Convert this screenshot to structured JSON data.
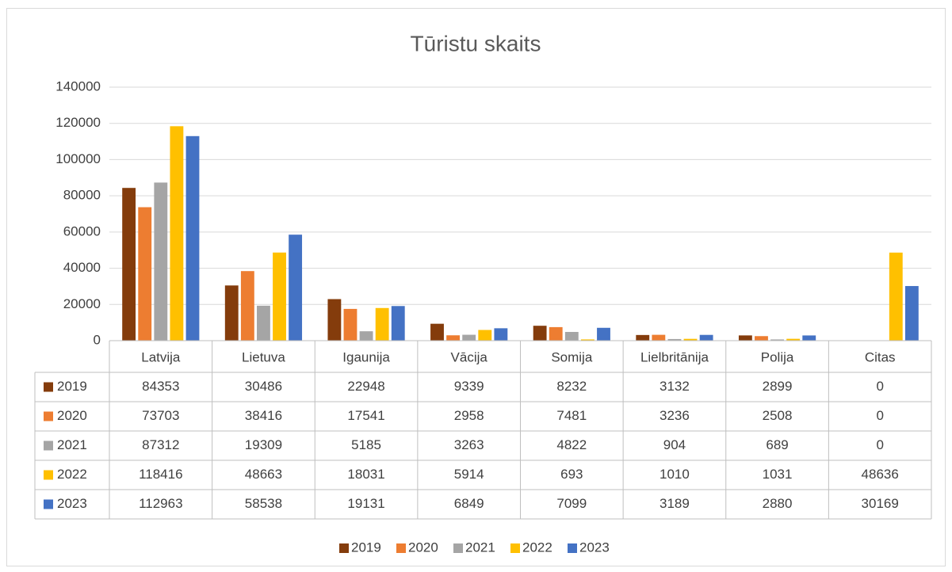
{
  "chart_data": {
    "type": "bar",
    "title": "Tūristu skaits",
    "categories": [
      "Latvija",
      "Lietuva",
      "Igaunija",
      "Vācija",
      "Somija",
      "Lielbritānija",
      "Polija",
      "Citas"
    ],
    "series": [
      {
        "name": "2019",
        "color": "#843c0c",
        "values": [
          84353,
          30486,
          22948,
          9339,
          8232,
          3132,
          2899,
          0
        ]
      },
      {
        "name": "2020",
        "color": "#ed7d31",
        "values": [
          73703,
          38416,
          17541,
          2958,
          7481,
          3236,
          2508,
          0
        ]
      },
      {
        "name": "2021",
        "color": "#a5a5a5",
        "values": [
          87312,
          19309,
          5185,
          3263,
          4822,
          904,
          689,
          0
        ]
      },
      {
        "name": "2022",
        "color": "#ffc000",
        "values": [
          118416,
          48663,
          18031,
          5914,
          693,
          1010,
          1031,
          48636
        ]
      },
      {
        "name": "2023",
        "color": "#4472c4",
        "values": [
          112963,
          58538,
          19131,
          6849,
          7099,
          3189,
          2880,
          30169
        ]
      }
    ],
    "ylim": [
      0,
      140000
    ],
    "yticks": [
      0,
      20000,
      40000,
      60000,
      80000,
      100000,
      120000,
      140000
    ],
    "grid": true,
    "legend": "bottom",
    "data_table": true
  }
}
